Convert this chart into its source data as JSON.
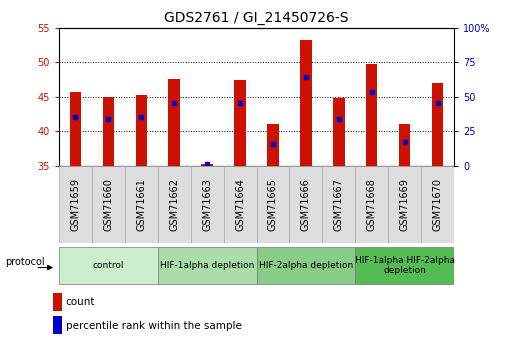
{
  "title": "GDS2761 / GI_21450726-S",
  "samples": [
    "GSM71659",
    "GSM71660",
    "GSM71661",
    "GSM71662",
    "GSM71663",
    "GSM71664",
    "GSM71665",
    "GSM71666",
    "GSM71667",
    "GSM71668",
    "GSM71669",
    "GSM71670"
  ],
  "count_values": [
    45.7,
    45.0,
    45.3,
    47.5,
    35.2,
    47.4,
    41.1,
    53.2,
    44.8,
    49.7,
    41.1,
    47.0
  ],
  "percentile_values": [
    42.1,
    41.7,
    42.1,
    44.1,
    35.3,
    44.0,
    38.2,
    47.9,
    41.7,
    45.7,
    38.4,
    44.0
  ],
  "ylim_left": [
    35,
    55
  ],
  "yticks_left": [
    35,
    40,
    45,
    50,
    55
  ],
  "ylim_right": [
    0,
    100
  ],
  "yticks_right": [
    0,
    25,
    50,
    75,
    100
  ],
  "ytick_labels_right": [
    "0",
    "25",
    "50",
    "75",
    "100%"
  ],
  "bar_color": "#cc1100",
  "marker_color": "#0000cc",
  "bar_width": 0.35,
  "groups": [
    {
      "label": "control",
      "start": 0,
      "end": 3,
      "color": "#cceecc"
    },
    {
      "label": "HIF-1alpha depletion",
      "start": 3,
      "end": 6,
      "color": "#aaddaa"
    },
    {
      "label": "HIF-2alpha depletion",
      "start": 6,
      "end": 9,
      "color": "#88cc88"
    },
    {
      "label": "HIF-1alpha HIF-2alpha\ndepletion",
      "start": 9,
      "end": 12,
      "color": "#55bb55"
    }
  ],
  "xlabel_color": "#cc1100",
  "ylabel_right_color": "#0000bb",
  "background_color": "#ffffff",
  "plot_bg_color": "#ffffff",
  "grid_color": "#000000",
  "title_fontsize": 10,
  "tick_fontsize": 7,
  "label_fontsize": 7
}
